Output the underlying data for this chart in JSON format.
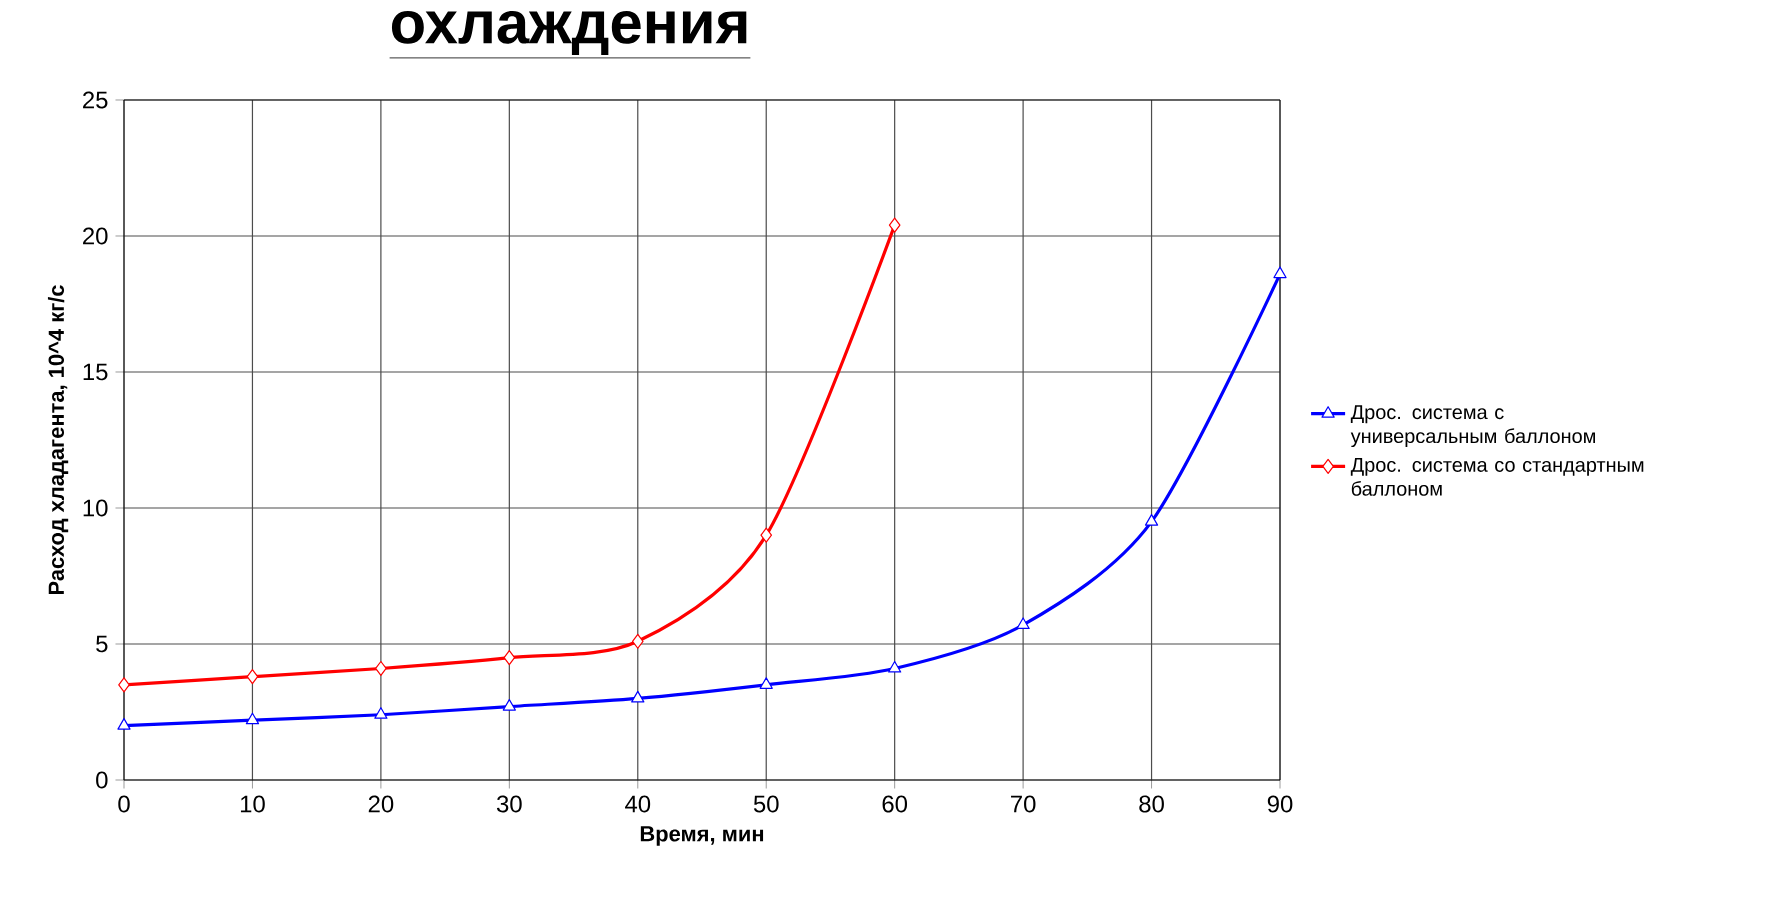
{
  "chart_data": {
    "type": "line",
    "title": "охлаждения",
    "xlabel": "Время, мин",
    "ylabel": "Расход хладагента, 10^4 кг/с",
    "x": [
      0,
      10,
      20,
      30,
      40,
      50,
      60,
      70,
      80,
      90
    ],
    "series": [
      {
        "name": "Дрос. система с универсальным баллоном",
        "color": "#0000ff",
        "marker": "triangle",
        "values": [
          2.0,
          2.2,
          2.4,
          2.7,
          3.0,
          3.5,
          4.1,
          5.7,
          9.5,
          18.6
        ]
      },
      {
        "name": "Дрос. система со стандартным баллоном",
        "color": "#ff0000",
        "marker": "diamond",
        "values": [
          3.5,
          3.8,
          4.1,
          4.5,
          5.1,
          9.0,
          20.4,
          null,
          null,
          null
        ]
      }
    ],
    "xlim": [
      0,
      90
    ],
    "xticks": [
      0,
      10,
      20,
      30,
      40,
      50,
      60,
      70,
      80,
      90
    ],
    "ylim": [
      0,
      25
    ],
    "yticks": [
      0,
      5,
      10,
      15,
      20,
      25
    ],
    "grid": true,
    "legend": "right",
    "line_style": "solid"
  }
}
